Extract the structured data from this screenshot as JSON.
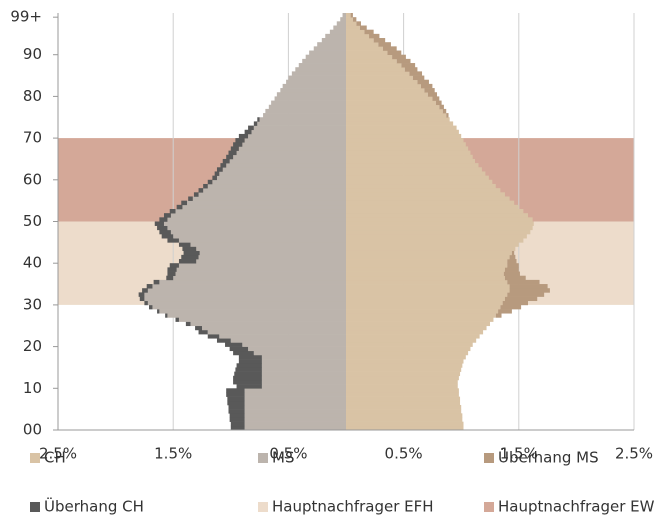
{
  "chart_data": {
    "type": "pyramid",
    "y": [
      0,
      1,
      2,
      3,
      4,
      5,
      6,
      7,
      8,
      9,
      10,
      11,
      12,
      13,
      14,
      15,
      16,
      17,
      18,
      19,
      20,
      21,
      22,
      23,
      24,
      25,
      26,
      27,
      28,
      29,
      30,
      31,
      32,
      33,
      34,
      35,
      36,
      37,
      38,
      39,
      40,
      41,
      42,
      43,
      44,
      45,
      46,
      47,
      48,
      49,
      50,
      51,
      52,
      53,
      54,
      55,
      56,
      57,
      58,
      59,
      60,
      61,
      62,
      63,
      64,
      65,
      66,
      67,
      68,
      69,
      70,
      71,
      72,
      73,
      74,
      75,
      76,
      77,
      78,
      79,
      80,
      81,
      82,
      83,
      84,
      85,
      86,
      87,
      88,
      89,
      90,
      91,
      92,
      93,
      94,
      95,
      96,
      97,
      98,
      99
    ],
    "series": [
      {
        "name": "CH",
        "color": "#d9c3a5",
        "side": "right",
        "values": [
          1.02,
          1.02,
          1.01,
          1.01,
          1.0,
          1.0,
          0.99,
          0.99,
          0.98,
          0.98,
          0.97,
          0.97,
          0.98,
          0.99,
          1.0,
          1.01,
          1.02,
          1.04,
          1.06,
          1.08,
          1.1,
          1.13,
          1.16,
          1.19,
          1.22,
          1.25,
          1.28,
          1.3,
          1.32,
          1.34,
          1.36,
          1.38,
          1.4,
          1.42,
          1.42,
          1.4,
          1.38,
          1.37,
          1.38,
          1.4,
          1.4,
          1.42,
          1.44,
          1.47,
          1.5,
          1.54,
          1.57,
          1.6,
          1.62,
          1.63,
          1.62,
          1.58,
          1.54,
          1.5,
          1.46,
          1.42,
          1.38,
          1.34,
          1.3,
          1.27,
          1.24,
          1.21,
          1.18,
          1.15,
          1.12,
          1.1,
          1.08,
          1.06,
          1.04,
          1.02,
          1.0,
          0.98,
          0.96,
          0.93,
          0.9,
          0.87,
          0.84,
          0.81,
          0.78,
          0.75,
          0.71,
          0.68,
          0.65,
          0.62,
          0.58,
          0.55,
          0.51,
          0.48,
          0.44,
          0.4,
          0.36,
          0.32,
          0.28,
          0.24,
          0.2,
          0.16,
          0.12,
          0.09,
          0.06,
          0.04
        ]
      },
      {
        "name": "MS",
        "color": "#bcb4ad",
        "side": "left",
        "values": [
          0.88,
          0.88,
          0.88,
          0.88,
          0.88,
          0.88,
          0.88,
          0.88,
          0.88,
          0.88,
          0.73,
          0.73,
          0.73,
          0.73,
          0.73,
          0.73,
          0.73,
          0.73,
          0.8,
          0.85,
          0.9,
          1.0,
          1.1,
          1.2,
          1.25,
          1.35,
          1.45,
          1.55,
          1.62,
          1.68,
          1.72,
          1.75,
          1.75,
          1.72,
          1.68,
          1.62,
          1.5,
          1.48,
          1.47,
          1.45,
          1.3,
          1.28,
          1.27,
          1.3,
          1.35,
          1.45,
          1.5,
          1.52,
          1.55,
          1.58,
          1.55,
          1.52,
          1.48,
          1.42,
          1.38,
          1.33,
          1.28,
          1.24,
          1.2,
          1.16,
          1.12,
          1.1,
          1.07,
          1.04,
          1.01,
          0.98,
          0.95,
          0.93,
          0.9,
          0.88,
          0.85,
          0.82,
          0.8,
          0.77,
          0.75,
          0.72,
          0.7,
          0.67,
          0.65,
          0.62,
          0.6,
          0.57,
          0.55,
          0.52,
          0.5,
          0.47,
          0.44,
          0.41,
          0.38,
          0.35,
          0.32,
          0.28,
          0.25,
          0.21,
          0.18,
          0.14,
          0.11,
          0.08,
          0.05,
          0.03
        ]
      },
      {
        "name": "Überhang MS",
        "color": "#b79a7e",
        "side": "right",
        "values": [
          0,
          0,
          0,
          0,
          0,
          0,
          0,
          0,
          0,
          0,
          0,
          0,
          0,
          0,
          0,
          0,
          0,
          0,
          0,
          0,
          0,
          0,
          0,
          0,
          0,
          0,
          0,
          0.05,
          0.12,
          0.18,
          0.22,
          0.28,
          0.32,
          0.35,
          0.33,
          0.28,
          0.18,
          0.14,
          0.12,
          0.1,
          0.08,
          0.05,
          0.02,
          0,
          0,
          0,
          0,
          0,
          0,
          0,
          0,
          0,
          0,
          0,
          0,
          0,
          0,
          0,
          0,
          0,
          0,
          0,
          0,
          0,
          0,
          0,
          0,
          0,
          0,
          0,
          0,
          0,
          0,
          0,
          0,
          0.02,
          0.03,
          0.04,
          0.05,
          0.06,
          0.08,
          0.09,
          0.1,
          0.1,
          0.1,
          0.11,
          0.11,
          0.12,
          0.12,
          0.12,
          0.12,
          0.12,
          0.11,
          0.1,
          0.09,
          0.08,
          0.06,
          0.04,
          0.03,
          0.02
        ]
      },
      {
        "name": "Überhang CH",
        "color": "#595959",
        "side": "left",
        "values": [
          0.12,
          0.12,
          0.13,
          0.13,
          0.14,
          0.14,
          0.15,
          0.15,
          0.16,
          0.16,
          0.22,
          0.25,
          0.25,
          0.24,
          0.23,
          0.22,
          0.2,
          0.2,
          0.18,
          0.16,
          0.15,
          0.12,
          0.1,
          0.08,
          0.06,
          0.04,
          0.03,
          0.02,
          0.02,
          0.03,
          0.03,
          0.04,
          0.05,
          0.05,
          0.05,
          0.05,
          0.06,
          0.07,
          0.08,
          0.08,
          0.15,
          0.15,
          0.14,
          0.12,
          0.1,
          0.1,
          0.1,
          0.1,
          0.09,
          0.08,
          0.07,
          0.06,
          0.05,
          0.05,
          0.05,
          0.04,
          0.04,
          0.04,
          0.04,
          0.04,
          0.04,
          0.04,
          0.05,
          0.05,
          0.06,
          0.06,
          0.07,
          0.07,
          0.08,
          0.08,
          0.08,
          0.06,
          0.05,
          0.03,
          0.02,
          0,
          0,
          0,
          0,
          0,
          0,
          0,
          0,
          0,
          0,
          0,
          0,
          0,
          0,
          0,
          0,
          0,
          0,
          0,
          0,
          0,
          0,
          0,
          0,
          0
        ]
      }
    ],
    "bands": [
      {
        "name": "Hauptnachfrager EFH",
        "color": "#eddccb",
        "range": [
          30,
          50
        ]
      },
      {
        "name": "Hauptnachfrager EW",
        "color": "#d4a898",
        "range": [
          50,
          70
        ]
      }
    ],
    "xlim": [
      -2.5,
      2.5
    ],
    "xticks": [
      {
        "value": -2.5,
        "label": "2.5%"
      },
      {
        "value": -1.5,
        "label": "1.5%"
      },
      {
        "value": -0.5,
        "label": "0.5%"
      },
      {
        "value": 0.5,
        "label": "0.5%"
      },
      {
        "value": 1.5,
        "label": "1.5%"
      },
      {
        "value": 2.5,
        "label": "2.5%"
      }
    ],
    "ylim": [
      0,
      100
    ],
    "yticks": [
      {
        "value": 0,
        "label": "00"
      },
      10,
      20,
      30,
      40,
      50,
      60,
      70,
      80,
      90,
      {
        "value": 99,
        "label": "99+"
      }
    ],
    "grid": true
  }
}
